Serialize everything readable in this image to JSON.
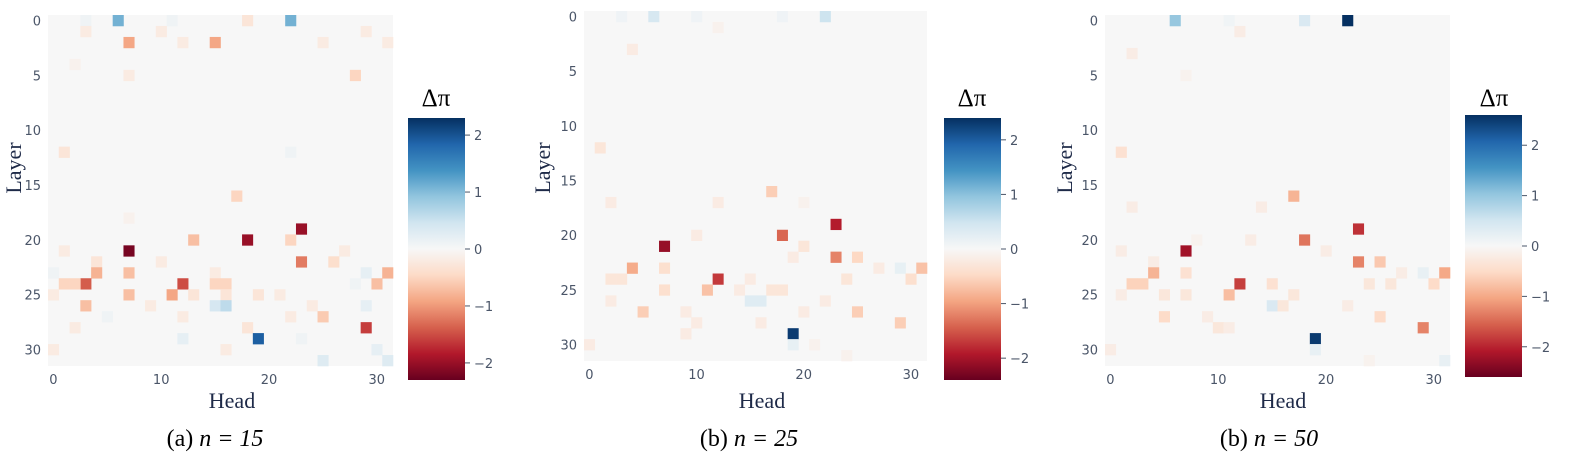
{
  "colors": {
    "base": "#f7f7f7",
    "colorscale": [
      "#053061",
      "#2166ac",
      "#4393c3",
      "#92c5de",
      "#d1e5f0",
      "#f7f7f7",
      "#fddbc7",
      "#f4a582",
      "#d6604d",
      "#b2182b",
      "#67001f"
    ]
  },
  "chart_data": [
    {
      "type": "heatmap",
      "xlabel": "Head",
      "ylabel": "Layer",
      "caption": {
        "prefix": "(a)",
        "math": "n = 15"
      },
      "colorbar": {
        "title": "Δπ",
        "ticks": [
          "2",
          "1",
          "0",
          "−1",
          "−2"
        ],
        "range": [
          -2.3,
          2.3
        ]
      },
      "x_ticks": [
        "0",
        "10",
        "20",
        "30"
      ],
      "y_ticks": [
        "0",
        "5",
        "10",
        "15",
        "20",
        "25",
        "30"
      ],
      "n_layers": 32,
      "n_heads": 32,
      "cells": [
        [
          0,
          6,
          1.1
        ],
        [
          0,
          22,
          1.1
        ],
        [
          0,
          11,
          0.1
        ],
        [
          0,
          18,
          -0.3
        ],
        [
          0,
          3,
          0.1
        ],
        [
          2,
          7,
          -0.9
        ],
        [
          2,
          15,
          -0.9
        ],
        [
          1,
          3,
          -0.2
        ],
        [
          1,
          10,
          -0.2
        ],
        [
          2,
          12,
          -0.2
        ],
        [
          2,
          25,
          -0.2
        ],
        [
          1,
          29,
          -0.2
        ],
        [
          2,
          31,
          -0.2
        ],
        [
          5,
          28,
          -0.5
        ],
        [
          5,
          7,
          -0.2
        ],
        [
          4,
          2,
          -0.1
        ],
        [
          12,
          1,
          -0.3
        ],
        [
          12,
          22,
          0.1
        ],
        [
          16,
          17,
          -0.5
        ],
        [
          18,
          7,
          -0.1
        ],
        [
          19,
          23,
          -2.0
        ],
        [
          20,
          18,
          -2.0
        ],
        [
          20,
          13,
          -0.7
        ],
        [
          20,
          22,
          -0.5
        ],
        [
          21,
          7,
          -2.2
        ],
        [
          21,
          1,
          -0.2
        ],
        [
          21,
          27,
          -0.2
        ],
        [
          22,
          23,
          -1.2
        ],
        [
          22,
          4,
          -0.3
        ],
        [
          22,
          10,
          -0.2
        ],
        [
          22,
          26,
          -0.4
        ],
        [
          23,
          4,
          -0.8
        ],
        [
          23,
          7,
          -0.7
        ],
        [
          23,
          31,
          -0.8
        ],
        [
          23,
          0,
          0.1
        ],
        [
          23,
          29,
          0.2
        ],
        [
          23,
          15,
          -0.2
        ],
        [
          24,
          3,
          -1.4
        ],
        [
          24,
          12,
          -1.5
        ],
        [
          24,
          1,
          -0.5
        ],
        [
          24,
          2,
          -0.5
        ],
        [
          24,
          15,
          -0.5
        ],
        [
          24,
          16,
          -0.5
        ],
        [
          24,
          30,
          -0.7
        ],
        [
          24,
          28,
          0.1
        ],
        [
          25,
          7,
          -0.7
        ],
        [
          25,
          11,
          -0.9
        ],
        [
          25,
          0,
          -0.2
        ],
        [
          25,
          13,
          -0.3
        ],
        [
          25,
          16,
          -0.3
        ],
        [
          25,
          19,
          -0.3
        ],
        [
          25,
          21,
          -0.2
        ],
        [
          26,
          3,
          -0.7
        ],
        [
          26,
          15,
          0.4
        ],
        [
          26,
          16,
          0.6
        ],
        [
          26,
          9,
          -0.2
        ],
        [
          26,
          24,
          -0.2
        ],
        [
          26,
          29,
          0.2
        ],
        [
          27,
          25,
          -0.6
        ],
        [
          27,
          5,
          0.1
        ],
        [
          27,
          12,
          -0.2
        ],
        [
          27,
          22,
          -0.2
        ],
        [
          28,
          29,
          -1.6
        ],
        [
          28,
          2,
          -0.2
        ],
        [
          28,
          18,
          -0.3
        ],
        [
          29,
          19,
          1.9
        ],
        [
          29,
          12,
          0.2
        ],
        [
          29,
          23,
          0.1
        ],
        [
          30,
          0,
          -0.2
        ],
        [
          30,
          16,
          -0.2
        ],
        [
          30,
          30,
          0.2
        ],
        [
          31,
          25,
          0.3
        ],
        [
          31,
          31,
          0.3
        ]
      ]
    },
    {
      "type": "heatmap",
      "xlabel": "Head",
      "ylabel": "Layer",
      "caption": {
        "prefix": "(b)",
        "math": "n = 25"
      },
      "colorbar": {
        "title": "Δπ",
        "ticks": [
          "2",
          "1",
          "0",
          "−1",
          "−2"
        ],
        "range": [
          -2.4,
          2.4
        ]
      },
      "x_ticks": [
        "0",
        "10",
        "20",
        "30"
      ],
      "y_ticks": [
        "0",
        "5",
        "10",
        "15",
        "20",
        "25",
        "30"
      ],
      "n_layers": 32,
      "n_heads": 32,
      "cells": [
        [
          0,
          6,
          0.4
        ],
        [
          0,
          22,
          0.5
        ],
        [
          0,
          10,
          0.1
        ],
        [
          0,
          18,
          0.1
        ],
        [
          0,
          3,
          0.1
        ],
        [
          3,
          4,
          -0.2
        ],
        [
          1,
          12,
          -0.1
        ],
        [
          12,
          1,
          -0.3
        ],
        [
          16,
          17,
          -0.6
        ],
        [
          17,
          2,
          -0.2
        ],
        [
          17,
          12,
          -0.2
        ],
        [
          17,
          20,
          -0.1
        ],
        [
          19,
          23,
          -1.9
        ],
        [
          20,
          18,
          -1.4
        ],
        [
          20,
          10,
          -0.2
        ],
        [
          21,
          7,
          -2.1
        ],
        [
          21,
          20,
          -0.3
        ],
        [
          22,
          23,
          -1.2
        ],
        [
          22,
          25,
          -0.5
        ],
        [
          22,
          19,
          -0.2
        ],
        [
          23,
          4,
          -0.9
        ],
        [
          23,
          7,
          -0.4
        ],
        [
          23,
          31,
          -0.7
        ],
        [
          23,
          27,
          -0.2
        ],
        [
          23,
          29,
          0.2
        ],
        [
          24,
          12,
          -1.7
        ],
        [
          24,
          2,
          -0.3
        ],
        [
          24,
          3,
          -0.3
        ],
        [
          24,
          24,
          -0.3
        ],
        [
          24,
          30,
          -0.4
        ],
        [
          24,
          15,
          -0.2
        ],
        [
          25,
          11,
          -0.7
        ],
        [
          25,
          7,
          -0.4
        ],
        [
          25,
          17,
          -0.3
        ],
        [
          25,
          18,
          -0.3
        ],
        [
          25,
          14,
          -0.2
        ],
        [
          26,
          15,
          0.3
        ],
        [
          26,
          16,
          0.3
        ],
        [
          26,
          2,
          -0.2
        ],
        [
          26,
          22,
          -0.2
        ],
        [
          27,
          5,
          -0.6
        ],
        [
          27,
          25,
          -0.6
        ],
        [
          27,
          9,
          -0.2
        ],
        [
          27,
          20,
          -0.2
        ],
        [
          28,
          29,
          -0.6
        ],
        [
          28,
          10,
          -0.2
        ],
        [
          28,
          16,
          -0.2
        ],
        [
          29,
          19,
          2.3
        ],
        [
          29,
          9,
          -0.2
        ],
        [
          30,
          0,
          -0.2
        ],
        [
          30,
          19,
          0.2
        ],
        [
          30,
          21,
          -0.1
        ],
        [
          31,
          24,
          -0.1
        ]
      ]
    },
    {
      "type": "heatmap",
      "xlabel": "Head",
      "ylabel": "Layer",
      "caption": {
        "prefix": "(b)",
        "math": "n = 50"
      },
      "colorbar": {
        "title": "Δπ",
        "ticks": [
          "2",
          "1",
          "0",
          "−1",
          "−2"
        ],
        "range": [
          -2.6,
          2.6
        ]
      },
      "x_ticks": [
        "0",
        "10",
        "20",
        "30"
      ],
      "y_ticks": [
        "0",
        "5",
        "10",
        "15",
        "20",
        "25",
        "30"
      ],
      "n_layers": 32,
      "n_heads": 32,
      "cells": [
        [
          0,
          6,
          1.0
        ],
        [
          0,
          22,
          2.6
        ],
        [
          0,
          18,
          0.4
        ],
        [
          0,
          11,
          0.1
        ],
        [
          1,
          12,
          -0.2
        ],
        [
          3,
          2,
          -0.2
        ],
        [
          5,
          7,
          -0.1
        ],
        [
          12,
          1,
          -0.4
        ],
        [
          16,
          17,
          -0.9
        ],
        [
          17,
          2,
          -0.2
        ],
        [
          17,
          14,
          -0.2
        ],
        [
          19,
          23,
          -1.9
        ],
        [
          20,
          18,
          -1.4
        ],
        [
          20,
          13,
          -0.2
        ],
        [
          20,
          8,
          -0.1
        ],
        [
          21,
          7,
          -2.2
        ],
        [
          21,
          1,
          -0.2
        ],
        [
          21,
          20,
          -0.2
        ],
        [
          22,
          23,
          -1.3
        ],
        [
          22,
          25,
          -0.7
        ],
        [
          22,
          4,
          -0.2
        ],
        [
          23,
          4,
          -0.9
        ],
        [
          23,
          7,
          -0.4
        ],
        [
          23,
          31,
          -1.0
        ],
        [
          23,
          29,
          0.2
        ],
        [
          23,
          27,
          -0.2
        ],
        [
          24,
          2,
          -0.6
        ],
        [
          24,
          3,
          -0.6
        ],
        [
          24,
          12,
          -1.8
        ],
        [
          24,
          15,
          -0.4
        ],
        [
          24,
          24,
          -0.3
        ],
        [
          24,
          26,
          -0.3
        ],
        [
          24,
          30,
          -0.5
        ],
        [
          25,
          11,
          -0.8
        ],
        [
          25,
          5,
          -0.3
        ],
        [
          25,
          7,
          -0.3
        ],
        [
          25,
          17,
          -0.3
        ],
        [
          25,
          1,
          -0.2
        ],
        [
          26,
          15,
          0.4
        ],
        [
          26,
          16,
          -0.3
        ],
        [
          26,
          22,
          -0.2
        ],
        [
          27,
          5,
          -0.5
        ],
        [
          27,
          25,
          -0.5
        ],
        [
          27,
          9,
          -0.2
        ],
        [
          28,
          29,
          -1.3
        ],
        [
          28,
          10,
          -0.3
        ],
        [
          28,
          11,
          -0.2
        ],
        [
          29,
          19,
          2.5
        ],
        [
          30,
          0,
          -0.2
        ],
        [
          30,
          19,
          0.2
        ],
        [
          31,
          31,
          0.2
        ],
        [
          31,
          24,
          -0.1
        ]
      ]
    }
  ]
}
